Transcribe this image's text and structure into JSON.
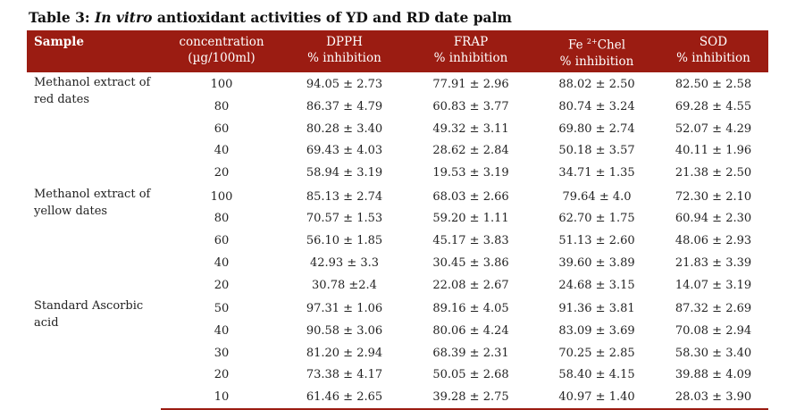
{
  "table_title": {
    "prefix": "Table 3: ",
    "italic": "In vitro",
    "rest": " antioxidant activities of YD and RD date palm"
  },
  "columns": {
    "sample": "Sample",
    "concentration": [
      "concentration",
      "(µg/100ml)"
    ],
    "dpph": [
      "DPPH",
      "% inhibition"
    ],
    "frap": [
      "FRAP",
      "% inhibition"
    ],
    "fechel": [
      "Fe",
      "2+",
      "Chel",
      "% inhibition"
    ],
    "sod": [
      "SOD",
      "% inhibition"
    ]
  },
  "groups": [
    {
      "sample": "Methanol extract of red dates",
      "rows": [
        {
          "conc": "100",
          "dpph": "94.05 ± 2.73",
          "frap": "77.91 ± 2.96",
          "fechel": "88.02 ± 2.50",
          "sod": "82.50 ± 2.58"
        },
        {
          "conc": "80",
          "dpph": "86.37 ± 4.79",
          "frap": "60.83 ± 3.77",
          "fechel": "80.74 ± 3.24",
          "sod": "69.28 ±  4.55"
        },
        {
          "conc": "60",
          "dpph": "80.28 ± 3.40",
          "frap": "49.32 ± 3.11",
          "fechel": "69.80 ± 2.74",
          "sod": "52.07 ± 4.29"
        },
        {
          "conc": "40",
          "dpph": "69.43 ± 4.03",
          "frap": "28.62 ± 2.84",
          "fechel": "50.18 ± 3.57",
          "sod": "40.11 ± 1.96"
        },
        {
          "conc": "20",
          "dpph": "58.94 ± 3.19",
          "frap": "19.53 ± 3.19",
          "fechel": "34.71 ± 1.35",
          "sod": "21.38 ± 2.50"
        }
      ]
    },
    {
      "sample": "Methanol extract of yellow dates",
      "rows": [
        {
          "conc": "100",
          "dpph": "85.13 ± 2.74",
          "frap": "68.03 ± 2.66",
          "fechel": "79.64 ± 4.0",
          "sod": "72.30 ± 2.10"
        },
        {
          "conc": "80",
          "dpph": "70.57 ± 1.53",
          "frap": "59.20 ± 1.11",
          "fechel": "62.70 ± 1.75",
          "sod": "60.94 ± 2.30"
        },
        {
          "conc": "60",
          "dpph": "56.10 ± 1.85",
          "frap": "45.17 ± 3.83",
          "fechel": "51.13 ± 2.60",
          "sod": "48.06 ± 2.93"
        },
        {
          "conc": "40",
          "dpph": "42.93 ± 3.3",
          "frap": "30.45 ± 3.86",
          "fechel": "39.60 ± 3.89",
          "sod": "21.83 ± 3.39"
        },
        {
          "conc": "20",
          "dpph": "30.78 ±2.4",
          "frap": "22.08 ± 2.67",
          "fechel": "24.68 ± 3.15",
          "sod": "14.07 ± 3.19"
        }
      ]
    },
    {
      "sample": "Standard Ascorbic acid",
      "rows": [
        {
          "conc": "50",
          "dpph": "97.31 ± 1.06",
          "frap": "89.16 ± 4.05",
          "fechel": "91.36 ± 3.81",
          "sod": "87.32 ± 2.69"
        },
        {
          "conc": "40",
          "dpph": "90.58 ± 3.06",
          "frap": "80.06 ± 4.24",
          "fechel": "83.09 ± 3.69",
          "sod": "70.08 ± 2.94"
        },
        {
          "conc": "30",
          "dpph": "81.20 ± 2.94",
          "frap": "68.39 ± 2.31",
          "fechel": "70.25 ± 2.85",
          "sod": "58.30 ± 3.40"
        },
        {
          "conc": "20",
          "dpph": "73.38 ± 4.17",
          "frap": "50.05 ± 2.68",
          "fechel": "58.40 ± 4.15",
          "sod": "39.88 ± 4.09"
        },
        {
          "conc": "10",
          "dpph": "61.46 ± 2.65",
          "frap": "39.28 ± 2.75",
          "fechel": "40.97 ± 1.40",
          "sod": "28.03 ± 3.90"
        }
      ]
    }
  ],
  "colors": {
    "header_background": "#9b1c12",
    "header_text": "#ffffff"
  }
}
